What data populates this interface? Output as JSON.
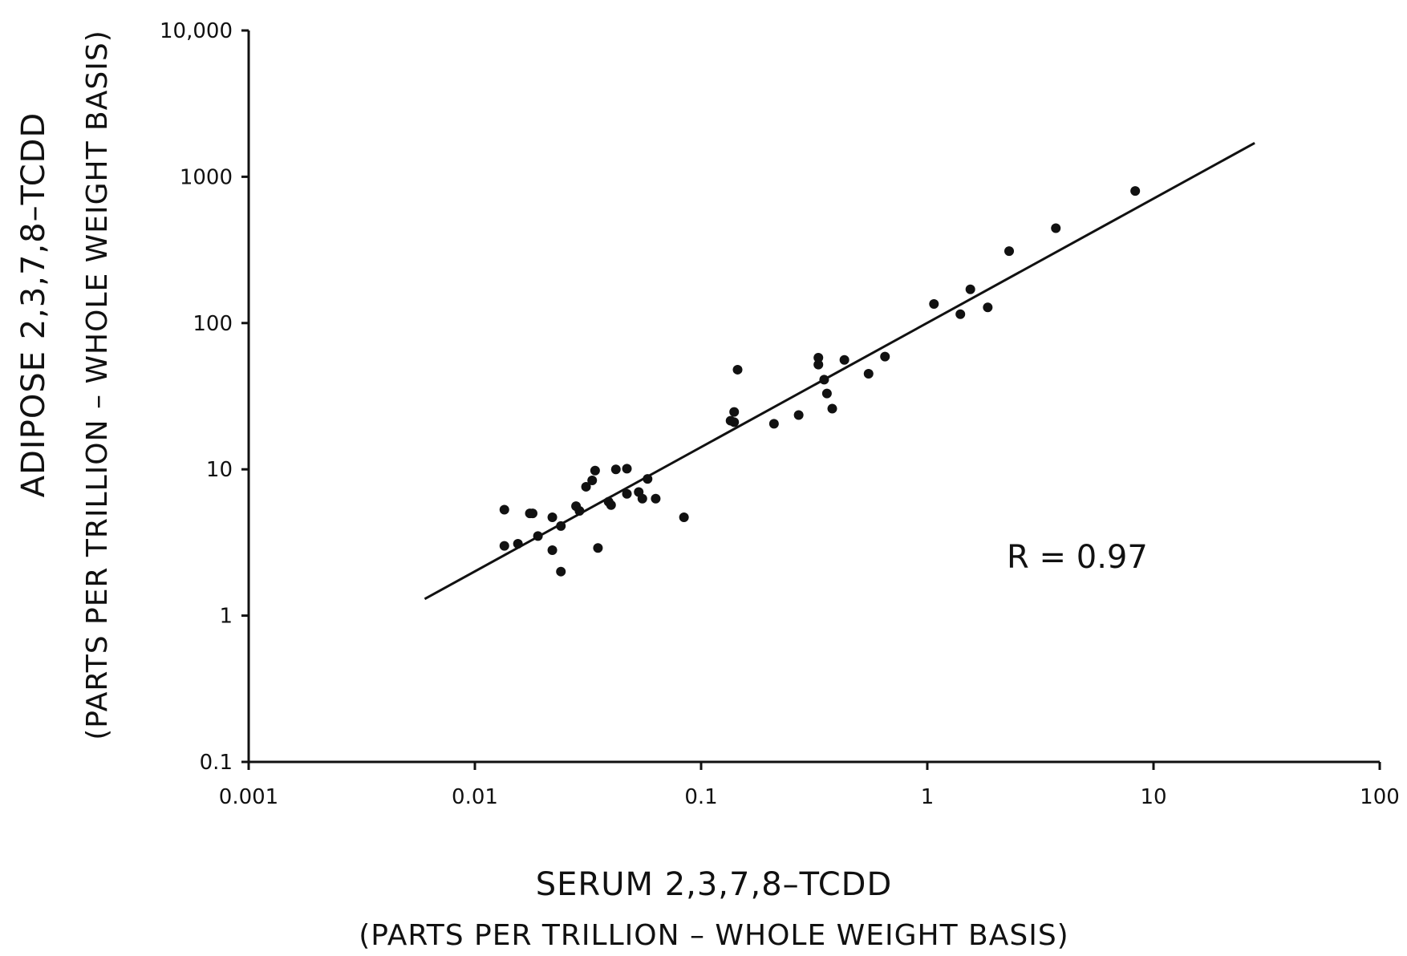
{
  "chart_data": {
    "type": "scatter",
    "xscale": "log",
    "yscale": "log",
    "xlim": [
      0.001,
      100
    ],
    "ylim": [
      0.1,
      10000
    ],
    "x_ticks": [
      "0.001",
      "0.01",
      "0.1",
      "1",
      "10",
      "100"
    ],
    "y_ticks": [
      "0.1",
      "1",
      "10",
      "100",
      "1000",
      "10,000"
    ],
    "xlabel": "SERUM 2,3,7,8–TCDD",
    "xlabel_sub": "(PARTS PER TRILLION – WHOLE WEIGHT BASIS)",
    "ylabel": "ADIPOSE 2,3,7,8–TCDD",
    "ylabel_sub": "(PARTS PER TRILLION – WHOLE WEIGHT BASIS)",
    "annotation": "R = 0.97",
    "grid": false,
    "series": [
      {
        "points": [
          [
            0.0135,
            5.3
          ],
          [
            0.0135,
            3.0
          ],
          [
            0.0155,
            3.1
          ],
          [
            0.0175,
            5.0
          ],
          [
            0.018,
            5.0
          ],
          [
            0.019,
            3.5
          ],
          [
            0.022,
            4.7
          ],
          [
            0.022,
            2.8
          ],
          [
            0.024,
            4.1
          ],
          [
            0.024,
            2.0
          ],
          [
            0.028,
            5.6
          ],
          [
            0.029,
            5.2
          ],
          [
            0.031,
            7.6
          ],
          [
            0.033,
            8.4
          ],
          [
            0.034,
            9.8
          ],
          [
            0.035,
            2.9
          ],
          [
            0.039,
            6.0
          ],
          [
            0.04,
            5.7
          ],
          [
            0.042,
            10.0
          ],
          [
            0.047,
            10.1
          ],
          [
            0.047,
            6.8
          ],
          [
            0.053,
            7.0
          ],
          [
            0.055,
            6.3
          ],
          [
            0.058,
            8.6
          ],
          [
            0.063,
            6.3
          ],
          [
            0.084,
            4.7
          ],
          [
            0.135,
            21.5
          ],
          [
            0.14,
            24.7
          ],
          [
            0.14,
            21.0
          ],
          [
            0.145,
            48.0
          ],
          [
            0.21,
            20.5
          ],
          [
            0.27,
            23.5
          ],
          [
            0.33,
            52.0
          ],
          [
            0.33,
            58.0
          ],
          [
            0.35,
            41.0
          ],
          [
            0.36,
            33.0
          ],
          [
            0.38,
            26.0
          ],
          [
            0.43,
            56.0
          ],
          [
            0.55,
            45.0
          ],
          [
            0.65,
            59.0
          ],
          [
            1.07,
            135.0
          ],
          [
            1.4,
            115.0
          ],
          [
            1.55,
            170.0
          ],
          [
            1.85,
            128.0
          ],
          [
            2.3,
            310.0
          ],
          [
            3.7,
            445.0
          ],
          [
            8.3,
            800.0
          ]
        ]
      }
    ],
    "fit_line": {
      "x": [
        0.006,
        28
      ],
      "y": [
        1.3,
        1700
      ]
    }
  }
}
